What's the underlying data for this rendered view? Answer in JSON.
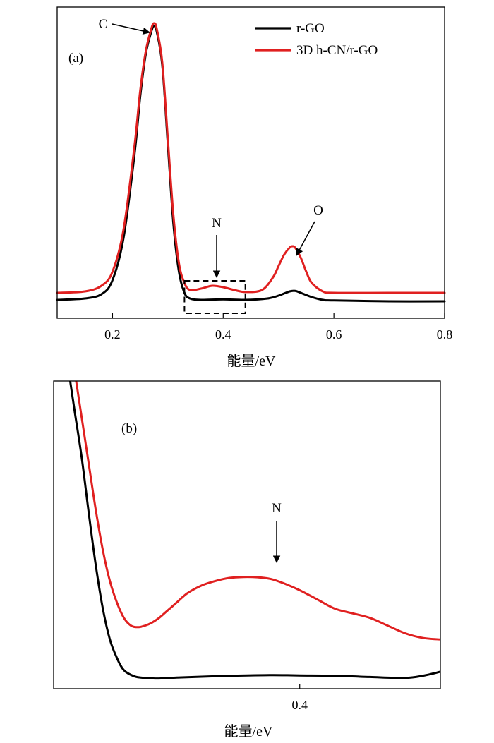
{
  "chart_data": [
    {
      "type": "line",
      "panel_label": "(a)",
      "xlabel": "能量/eV",
      "xlim": [
        0.1,
        0.8
      ],
      "xticks": [
        0.2,
        0.4,
        0.6,
        0.8
      ],
      "xtick_labels": [
        "0.2",
        "0.4",
        "0.6",
        "0.8"
      ],
      "ylim": [
        0,
        1.0
      ],
      "legend": {
        "placement": "top-right",
        "entries": [
          "r-GO",
          "3D h-CN/r-GO"
        ]
      },
      "annotations": [
        {
          "text": "C",
          "x": 0.275
        },
        {
          "text": "N",
          "x": 0.385
        },
        {
          "text": "O",
          "x": 0.525
        }
      ],
      "inset_box": {
        "x": [
          0.33,
          0.44
        ]
      },
      "series": [
        {
          "name": "r-GO",
          "color": "#000000",
          "x": [
            0.1,
            0.15,
            0.18,
            0.2,
            0.22,
            0.24,
            0.25,
            0.26,
            0.27,
            0.275,
            0.28,
            0.29,
            0.3,
            0.31,
            0.32,
            0.33,
            0.34,
            0.36,
            0.4,
            0.44,
            0.48,
            0.5,
            0.52,
            0.53,
            0.54,
            0.56,
            0.58,
            0.6,
            0.7,
            0.8
          ],
          "y": [
            0.03,
            0.035,
            0.05,
            0.1,
            0.25,
            0.55,
            0.75,
            0.9,
            0.98,
            1.0,
            0.98,
            0.86,
            0.58,
            0.3,
            0.13,
            0.055,
            0.035,
            0.03,
            0.032,
            0.03,
            0.035,
            0.045,
            0.06,
            0.062,
            0.055,
            0.04,
            0.03,
            0.028,
            0.025,
            0.025
          ]
        },
        {
          "name": "3D h-CN/r-GO",
          "color": "#e02020",
          "x": [
            0.1,
            0.15,
            0.18,
            0.2,
            0.22,
            0.24,
            0.25,
            0.26,
            0.27,
            0.275,
            0.28,
            0.29,
            0.3,
            0.31,
            0.32,
            0.33,
            0.34,
            0.36,
            0.38,
            0.4,
            0.42,
            0.44,
            0.47,
            0.49,
            0.5,
            0.51,
            0.52,
            0.525,
            0.53,
            0.54,
            0.55,
            0.56,
            0.58,
            0.6,
            0.7,
            0.8
          ],
          "y": [
            0.055,
            0.06,
            0.08,
            0.13,
            0.28,
            0.58,
            0.77,
            0.91,
            0.99,
            1.01,
            0.99,
            0.87,
            0.6,
            0.33,
            0.16,
            0.09,
            0.065,
            0.07,
            0.08,
            0.075,
            0.065,
            0.058,
            0.065,
            0.11,
            0.15,
            0.19,
            0.215,
            0.22,
            0.215,
            0.18,
            0.13,
            0.09,
            0.06,
            0.055,
            0.055,
            0.055
          ]
        }
      ]
    },
    {
      "type": "line",
      "panel_label": "(b)",
      "xlabel": "能量/eV",
      "xlim": [
        0.33,
        0.44
      ],
      "xticks": [
        0.4
      ],
      "xtick_labels": [
        "0.4"
      ],
      "ylim": [
        0,
        1.0
      ],
      "annotations": [
        {
          "text": "N",
          "x": 0.385
        }
      ],
      "series": [
        {
          "name": "r-GO",
          "color": "#000000",
          "x": [
            0.3347,
            0.336,
            0.338,
            0.34,
            0.342,
            0.344,
            0.346,
            0.348,
            0.35,
            0.353,
            0.356,
            0.36,
            0.365,
            0.37,
            0.375,
            0.38,
            0.385,
            0.39,
            0.395,
            0.4,
            0.41,
            0.42,
            0.43,
            0.435,
            0.44
          ],
          "y": [
            1.0,
            0.9,
            0.75,
            0.57,
            0.4,
            0.26,
            0.16,
            0.1,
            0.06,
            0.04,
            0.035,
            0.033,
            0.036,
            0.038,
            0.04,
            0.042,
            0.043,
            0.044,
            0.044,
            0.043,
            0.042,
            0.038,
            0.035,
            0.042,
            0.055
          ]
        },
        {
          "name": "3D h-CN/r-GO",
          "color": "#e02020",
          "x": [
            0.3364,
            0.338,
            0.34,
            0.342,
            0.344,
            0.346,
            0.348,
            0.35,
            0.352,
            0.354,
            0.356,
            0.358,
            0.36,
            0.362,
            0.365,
            0.368,
            0.372,
            0.376,
            0.38,
            0.384,
            0.388,
            0.392,
            0.396,
            0.4,
            0.405,
            0.41,
            0.415,
            0.42,
            0.425,
            0.43,
            0.435,
            0.44
          ],
          "y": [
            1.0,
            0.88,
            0.73,
            0.58,
            0.45,
            0.35,
            0.28,
            0.23,
            0.205,
            0.2,
            0.205,
            0.215,
            0.23,
            0.25,
            0.28,
            0.31,
            0.335,
            0.35,
            0.36,
            0.363,
            0.362,
            0.356,
            0.34,
            0.32,
            0.29,
            0.26,
            0.245,
            0.23,
            0.205,
            0.18,
            0.165,
            0.16
          ]
        }
      ]
    }
  ]
}
